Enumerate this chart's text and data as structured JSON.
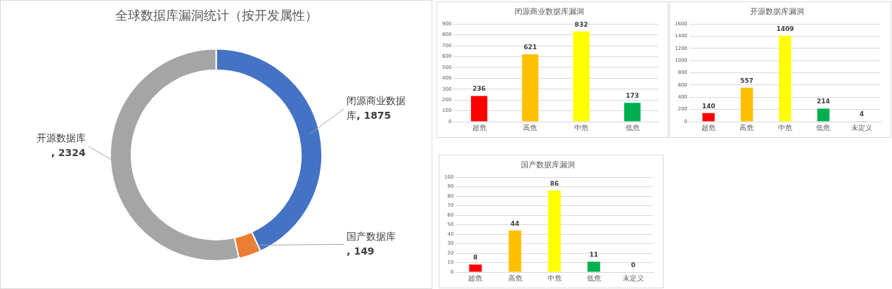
{
  "chart_data": [
    {
      "type": "donut",
      "title": "全球数据库漏洞统计（按开发属性）",
      "categories": [
        "闭源商业数据库",
        "国产数据库",
        "开源数据库"
      ],
      "values": [
        1875,
        149,
        2324
      ],
      "colors": [
        "#4472c4",
        "#ed7d31",
        "#a5a5a5"
      ],
      "value_labels": [
        ", 1875",
        ", 149",
        ", 2324"
      ]
    },
    {
      "type": "bar",
      "title": "闭源商业数据库漏洞",
      "categories": [
        "超危",
        "高危",
        "中危",
        "低危"
      ],
      "values": [
        236,
        621,
        832,
        173
      ],
      "colors": [
        "#ff0000",
        "#ffc000",
        "#ffff00",
        "#00b050"
      ],
      "ylim": [
        0,
        900
      ],
      "yticks": [
        0,
        100,
        200,
        300,
        400,
        500,
        600,
        700,
        800,
        900
      ],
      "grid": "y",
      "data_labels": true
    },
    {
      "type": "bar",
      "title": "开源数据库漏洞",
      "categories": [
        "超危",
        "高危",
        "中危",
        "低危",
        "未定义"
      ],
      "values": [
        140,
        557,
        1409,
        214,
        4
      ],
      "colors": [
        "#ff0000",
        "#ffc000",
        "#ffff00",
        "#00b050",
        "#5b9bd5"
      ],
      "ylim": [
        0,
        1600
      ],
      "yticks": [
        0,
        200,
        400,
        600,
        800,
        1000,
        1200,
        1400,
        1600
      ],
      "grid": "y",
      "data_labels": true
    },
    {
      "type": "bar",
      "title": "国产数据库漏洞",
      "categories": [
        "超危",
        "高危",
        "中危",
        "低危",
        "未定义"
      ],
      "values": [
        8,
        44,
        86,
        11,
        0
      ],
      "colors": [
        "#ff0000",
        "#ffc000",
        "#ffff00",
        "#00b050",
        "#5b9bd5"
      ],
      "ylim": [
        0,
        100
      ],
      "yticks": [
        0,
        10,
        20,
        30,
        40,
        50,
        60,
        70,
        80,
        90,
        100
      ],
      "grid": "y",
      "data_labels": true
    }
  ]
}
